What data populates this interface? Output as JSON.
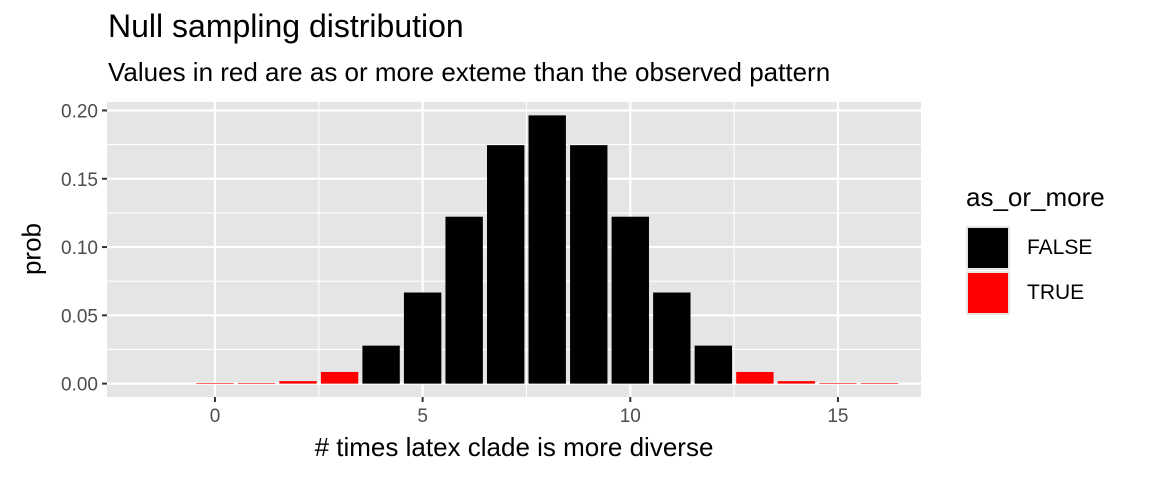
{
  "header": {
    "title": "Null sampling distribution",
    "subtitle": "Values in red are as or more exteme than the observed pattern"
  },
  "axes": {
    "xlabel": "# times latex clade is more diverse",
    "ylabel": "prob",
    "x_ticks": [
      "0",
      "5",
      "10",
      "15"
    ],
    "y_ticks": [
      "0.00",
      "0.05",
      "0.10",
      "0.15",
      "0.20"
    ]
  },
  "legend": {
    "title": "as_or_more",
    "items": [
      {
        "label": "FALSE",
        "color": "#000000"
      },
      {
        "label": "TRUE",
        "color": "#ff0000"
      }
    ]
  },
  "colors": {
    "panel_bg": "#e5e5e5",
    "grid": "#ffffff",
    "false": "#000000",
    "true": "#ff0000"
  },
  "chart_data": {
    "type": "bar",
    "title": "Null sampling distribution",
    "subtitle": "Values in red are as or more exteme than the observed pattern",
    "xlabel": "# times latex clade is more diverse",
    "ylabel": "prob",
    "x": [
      0,
      1,
      2,
      3,
      4,
      5,
      6,
      7,
      8,
      9,
      10,
      11,
      12,
      13,
      14,
      15,
      16
    ],
    "values": [
      1.53e-05,
      0.000244,
      0.00183,
      0.00854,
      0.0278,
      0.0667,
      0.1222,
      0.1746,
      0.1964,
      0.1746,
      0.1222,
      0.0667,
      0.0278,
      0.00854,
      0.00183,
      0.000244,
      1.53e-05
    ],
    "as_or_more": [
      true,
      true,
      true,
      true,
      false,
      false,
      false,
      false,
      false,
      false,
      false,
      false,
      false,
      true,
      true,
      true,
      true
    ],
    "xlim": [
      -2.6,
      17.0
    ],
    "ylim": [
      -0.0098,
      0.2062
    ],
    "x_ticks": [
      0,
      5,
      10,
      15
    ],
    "y_ticks": [
      0.0,
      0.05,
      0.1,
      0.15,
      0.2
    ],
    "grid": true,
    "legend": {
      "title": "as_or_more",
      "entries": [
        "FALSE",
        "TRUE"
      ],
      "position": "right"
    }
  }
}
